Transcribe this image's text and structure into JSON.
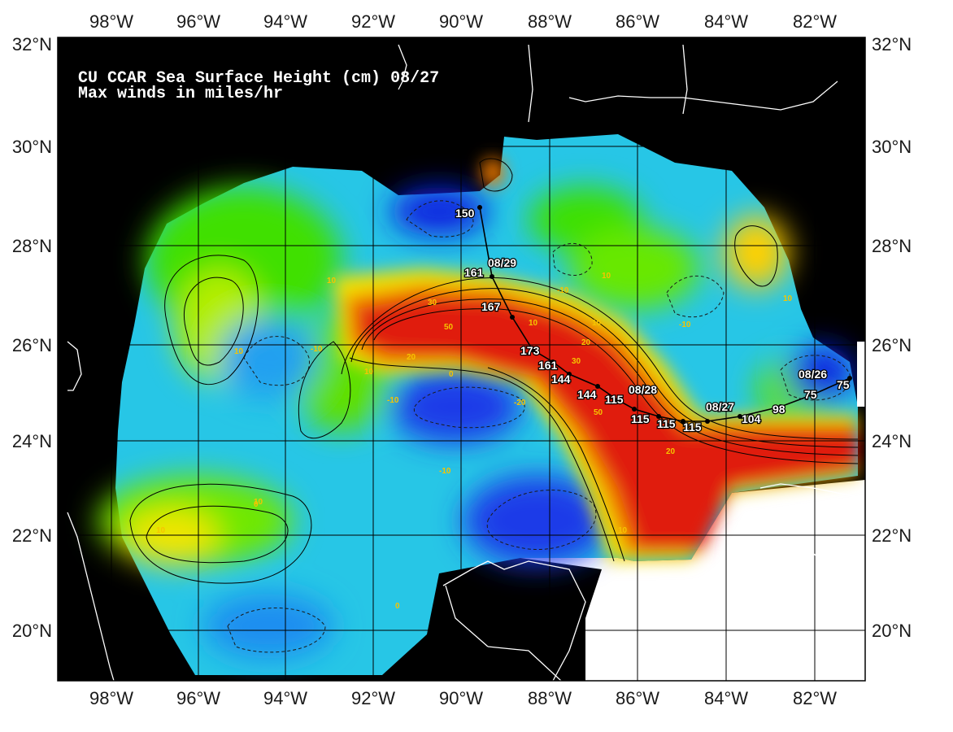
{
  "title": {
    "line1": "CU CCAR Sea Surface Height (cm) 08/27",
    "line2": "Max winds in miles/hr"
  },
  "axes": {
    "longitude_labels": [
      "98°W",
      "96°W",
      "94°W",
      "92°W",
      "90°W",
      "88°W",
      "86°W",
      "84°W",
      "82°W"
    ],
    "latitude_labels": [
      "32°N",
      "30°N",
      "28°N",
      "26°N",
      "24°N",
      "22°N",
      "20°N"
    ]
  },
  "track": {
    "date_labels": [
      "08/26",
      "08/27",
      "08/28",
      "08/29"
    ],
    "wind_labels": [
      "75",
      "75",
      "98",
      "104",
      "115",
      "115",
      "115",
      "115",
      "144",
      "144",
      "161",
      "173",
      "167",
      "161",
      "150"
    ]
  },
  "contour_labels": [
    "10",
    "10",
    "10",
    "10",
    "10",
    "10",
    "10",
    "10",
    "10",
    "10",
    "20",
    "20",
    "20",
    "30",
    "30",
    "50",
    "50",
    "-10",
    "-10",
    "-10",
    "-10",
    "-10",
    "-20",
    "0",
    "0",
    "0"
  ],
  "colors": {
    "land": "#000000",
    "no_data": "#ffffff",
    "high": "#e01c0c",
    "mid_high": "#ffd000",
    "mid": "#3ee000",
    "low": "#26c4ef",
    "very_low": "#0a22e0"
  }
}
